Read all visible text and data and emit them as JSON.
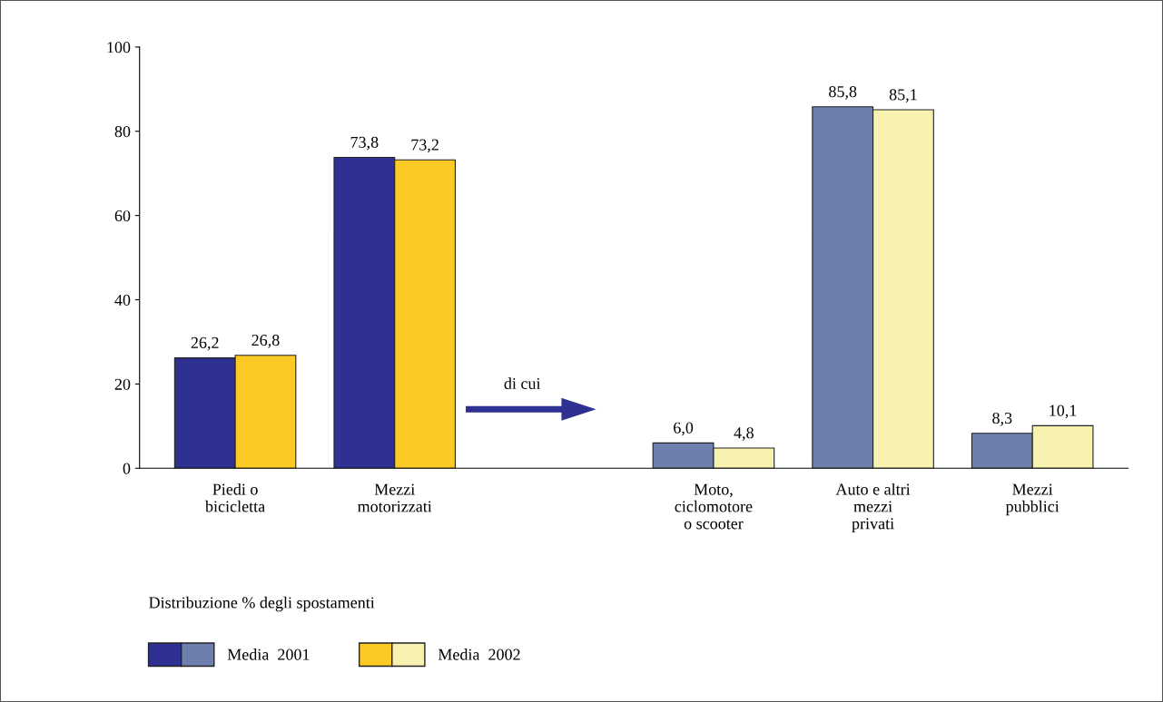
{
  "chart_data": {
    "type": "bar",
    "categories": [
      "Piedi o\nbicicletta",
      "Mezzi\nmotorizzati",
      null,
      "Moto,\nciclomotore\no scooter",
      "Auto e altri\nmezzi\nprivati",
      "Mezzi\npubblici"
    ],
    "series": [
      {
        "name": "Media  2001",
        "colors": [
          "#2e3192",
          "#2e3192",
          null,
          "#6f7fad",
          "#6f7fad",
          "#6f7fad"
        ],
        "values": [
          26.2,
          73.8,
          null,
          6.0,
          85.8,
          8.3
        ],
        "value_labels": [
          "26,2",
          "73,8",
          null,
          "6,0",
          "85,8",
          "8,3"
        ]
      },
      {
        "name": "Media  2002",
        "colors": [
          "#fcca25",
          "#fcca25",
          null,
          "#f8f2b0",
          "#f8f2b0",
          "#f8f2b0"
        ],
        "values": [
          26.8,
          73.2,
          null,
          4.8,
          85.1,
          10.1
        ],
        "value_labels": [
          "26,8",
          "73,2",
          null,
          "4,8",
          "85,1",
          "10,1"
        ]
      }
    ],
    "ylim": [
      0,
      100
    ],
    "yticks": [
      0,
      20,
      40,
      60,
      80,
      100
    ],
    "grid": false,
    "legend": "bottom left",
    "legend_title": "Distribuzione % degli spostamenti",
    "annotations": [
      "di cui"
    ]
  }
}
